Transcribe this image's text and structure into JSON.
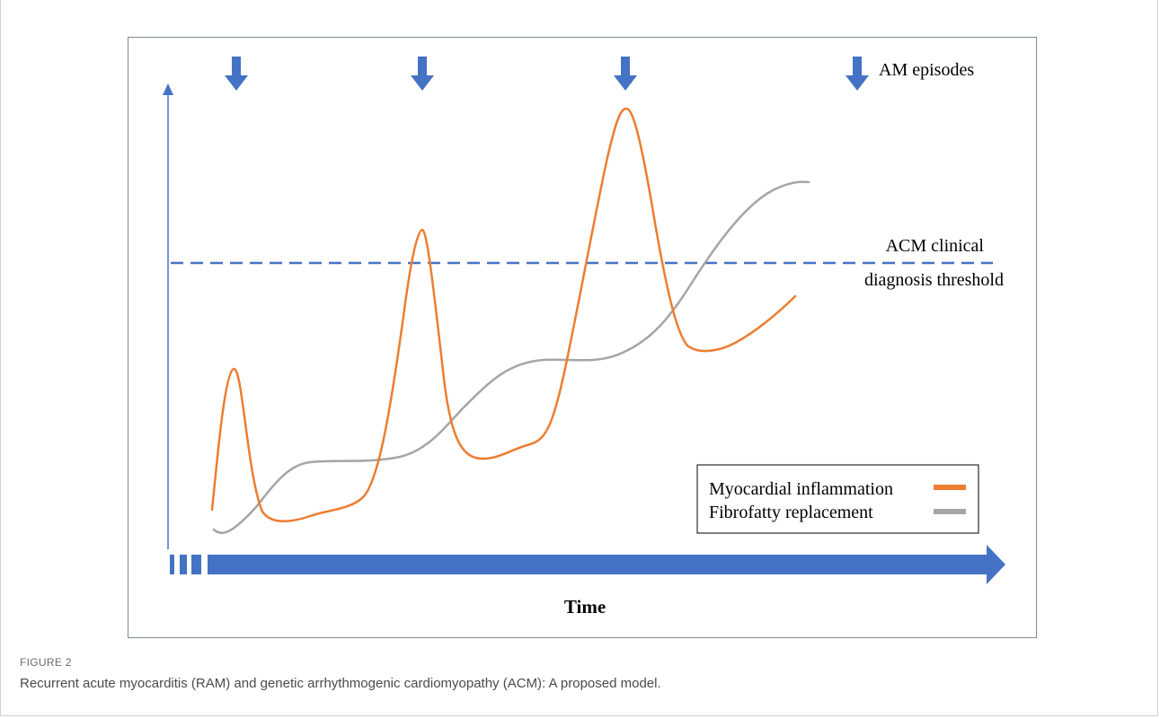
{
  "figure": {
    "label": "FIGURE 2",
    "caption": "Recurrent acute myocarditis (RAM) and genetic arrhythmogenic cardiomyopathy (ACM): A proposed model."
  },
  "diagram": {
    "legend_arrow_label": "AM episodes",
    "episode_count": 3,
    "threshold_label_line1": "ACM clinical",
    "threshold_label_line2": "diagnosis threshold",
    "x_axis_label": "Time",
    "legend": [
      {
        "name": "Myocardial inflammation",
        "color": "#ED7D31"
      },
      {
        "name": "Fibrofatty replacement",
        "color": "#A5A5A5"
      }
    ],
    "colors": {
      "axis_blue": "#4472C4",
      "inflammation": "#ED7D31",
      "fibrofatty": "#A5A5A5"
    },
    "icons": [
      "down-arrow-icon",
      "up-arrow-icon",
      "right-arrow-icon"
    ]
  }
}
